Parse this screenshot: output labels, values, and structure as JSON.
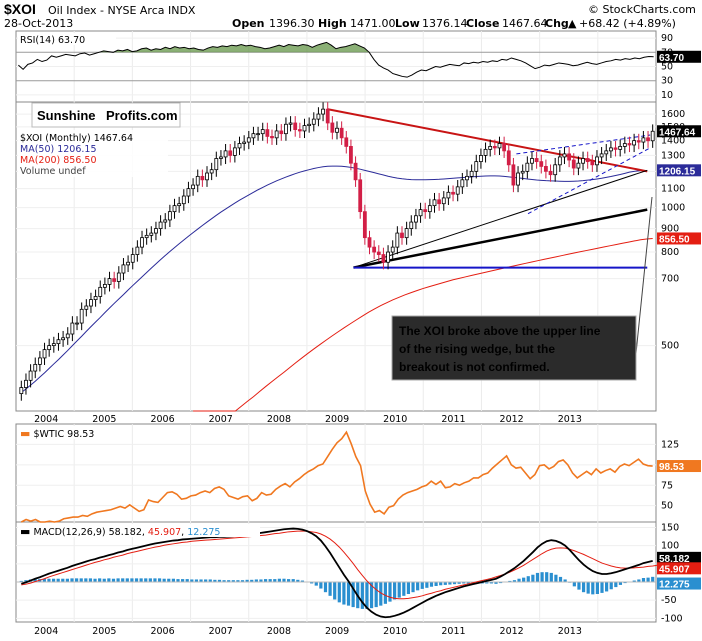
{
  "header": {
    "symbol": "$XOI",
    "name": "Oil Index - NYSE Arca INDX",
    "date": "28-Oct-2013",
    "watermark": "© StockCharts.com",
    "open_label": "Open",
    "open": "1396.30",
    "high_label": "High",
    "high": "1471.00",
    "low_label": "Low",
    "low": "1376.14",
    "close_label": "Close",
    "close": "1467.64",
    "chg_label": "Chg",
    "chg": "+68.42 (+4.89%)",
    "up_arrow": "▲"
  },
  "logo": {
    "part1": "Sunshine",
    "part2": "Profits.com"
  },
  "annotation": {
    "line1": "The XOI broke above the upper line",
    "line2": "of the rising wedge, but the",
    "line3": "breakout is not confirmed."
  },
  "colors": {
    "up": "#000000",
    "down": "#d21f46",
    "ma50": "#2b2b99",
    "ma200": "#e41e12",
    "wtic": "#f07820",
    "macd": "#000000",
    "signal": "#e41e12",
    "hist": "#2a8fd0",
    "rsi": "#000000",
    "rsi_fill": "#5a8f3c",
    "trend_red": "#c81414",
    "support_blue": "#1515c8",
    "badge_price": "#000000",
    "badge_ma50": "#2b2b99",
    "badge_ma200": "#e41e12",
    "badge_wtic": "#f07820"
  },
  "chart_data": [
    {
      "panel": "rsi",
      "type": "line",
      "title": "RSI(14) 63.70",
      "label": "RSI(14)",
      "value": "63.70",
      "ylim": [
        0,
        100
      ],
      "yticks": [
        10,
        30,
        50,
        70,
        90
      ],
      "levels": [
        30,
        70
      ],
      "badge": "63.70",
      "values": [
        52,
        46,
        53,
        55,
        60,
        57,
        59,
        65,
        63,
        65,
        67,
        66,
        65,
        68,
        69,
        66,
        68,
        70,
        72,
        71,
        70,
        73,
        72,
        74,
        71,
        72,
        75,
        76,
        73,
        75,
        74,
        77,
        75,
        78,
        76,
        77,
        75,
        76,
        74,
        73,
        76,
        78,
        77,
        79,
        78,
        80,
        79,
        81,
        79,
        80,
        78,
        77,
        75,
        76,
        78,
        80,
        78,
        81,
        80,
        79,
        81,
        80,
        77,
        80,
        82,
        84,
        80,
        75,
        77,
        78,
        80,
        82,
        79,
        76,
        70,
        60,
        52,
        48,
        45,
        40,
        38,
        36,
        35,
        38,
        42,
        45,
        44,
        47,
        50,
        49,
        51,
        53,
        52,
        51,
        55,
        54,
        56,
        55,
        57,
        56,
        58,
        57,
        60,
        59,
        62,
        60,
        58,
        55,
        51,
        47,
        49,
        52,
        51,
        53,
        55,
        54,
        53,
        51,
        52,
        54,
        56,
        54,
        53,
        55,
        57,
        58,
        60,
        59,
        61,
        60,
        62,
        61,
        63,
        64,
        63.7
      ]
    },
    {
      "panel": "price",
      "type": "candlestick",
      "title": "$XOI (Monthly) 1467.64",
      "scale": "log",
      "ylim": [
        360,
        1700
      ],
      "yticks": [
        500,
        700,
        800,
        900,
        1000,
        1100,
        1200,
        1300,
        1400,
        1500,
        1600
      ],
      "ytick_labels": [
        "500",
        "700",
        "800",
        "900",
        "1000",
        "1100",
        "1200",
        "1300",
        "1400",
        "1500",
        "1600"
      ],
      "x_labels": [
        "2004",
        "2005",
        "2006",
        "2007",
        "2008",
        "2009",
        "2010",
        "2011",
        "2012",
        "2013"
      ],
      "x_label_start": 2003.5,
      "x_start": 2003.0,
      "x_end": 2014.0,
      "legend": [
        {
          "text": "$XOI (Monthly) 1467.64",
          "color_key": "up"
        },
        {
          "text": "MA(50) 1206.15",
          "color_key": "ma50"
        },
        {
          "text": "MA(200) 856.50",
          "color_key": "ma200"
        },
        {
          "text": "Volume undef",
          "color_key": "up"
        }
      ],
      "closes": [
        405,
        420,
        440,
        455,
        470,
        490,
        500,
        505,
        515,
        520,
        530,
        560,
        560,
        600,
        610,
        630,
        640,
        670,
        680,
        700,
        690,
        720,
        750,
        760,
        790,
        820,
        860,
        870,
        880,
        900,
        930,
        940,
        980,
        1010,
        1020,
        1060,
        1100,
        1120,
        1170,
        1150,
        1190,
        1210,
        1280,
        1290,
        1330,
        1300,
        1350,
        1380,
        1390,
        1420,
        1450,
        1450,
        1480,
        1430,
        1420,
        1470,
        1450,
        1520,
        1530,
        1480,
        1470,
        1510,
        1520,
        1560,
        1600,
        1640,
        1530,
        1460,
        1490,
        1420,
        1360,
        1250,
        1150,
        980,
        860,
        820,
        800,
        790,
        760,
        800,
        820,
        880,
        860,
        900,
        930,
        960,
        990,
        980,
        1010,
        1040,
        1020,
        1050,
        1080,
        1070,
        1110,
        1150,
        1170,
        1200,
        1260,
        1300,
        1340,
        1360,
        1350,
        1380,
        1330,
        1240,
        1120,
        1190,
        1200,
        1250,
        1280,
        1260,
        1230,
        1200,
        1180,
        1240,
        1290,
        1310,
        1270,
        1220,
        1250,
        1280,
        1260,
        1240,
        1290,
        1310,
        1330,
        1350,
        1340,
        1360,
        1380,
        1370,
        1400,
        1390,
        1420,
        1399.2,
        1467.64
      ],
      "ma50": [
        395,
        402,
        410,
        418,
        427,
        436,
        446,
        456,
        466,
        477,
        488,
        500,
        512,
        524,
        537,
        550,
        563,
        576,
        590,
        604,
        618,
        632,
        646,
        661,
        676,
        691,
        706,
        722,
        738,
        754,
        770,
        786,
        802,
        818,
        834,
        850,
        866,
        882,
        898,
        914,
        930,
        946,
        962,
        978,
        993,
        1008,
        1023,
        1038,
        1052,
        1066,
        1080,
        1094,
        1107,
        1120,
        1132,
        1144,
        1155,
        1166,
        1176,
        1186,
        1195,
        1203,
        1210,
        1217,
        1223,
        1228,
        1231,
        1232,
        1232,
        1231,
        1228,
        1224,
        1219,
        1213,
        1206,
        1199,
        1192,
        1185,
        1178,
        1171,
        1165,
        1160,
        1156,
        1153,
        1151,
        1150,
        1150,
        1150,
        1151,
        1152,
        1153,
        1155,
        1157,
        1159,
        1161,
        1163,
        1165,
        1167,
        1169,
        1171,
        1172,
        1173,
        1173,
        1172,
        1170,
        1167,
        1164,
        1161,
        1158,
        1155,
        1152,
        1149,
        1147,
        1145,
        1144,
        1143,
        1142,
        1141,
        1141,
        1142,
        1143,
        1145,
        1148,
        1151,
        1155,
        1159,
        1164,
        1169,
        1175,
        1181,
        1188,
        1195,
        1200,
        1203,
        1206.15
      ],
      "ma200_start": 2006.0,
      "ma200": [
        300,
        308,
        316,
        324,
        333,
        342,
        351,
        360,
        369,
        378,
        387,
        397,
        407,
        417,
        427,
        437,
        448,
        459,
        470,
        481,
        492,
        503,
        514,
        525,
        536,
        547,
        558,
        569,
        580,
        591,
        601,
        611,
        620,
        629,
        637,
        645,
        652,
        659,
        666,
        672,
        678,
        684,
        690,
        696,
        701,
        706,
        711,
        716,
        721,
        726,
        731,
        736,
        741,
        746,
        751,
        756,
        761,
        766,
        771,
        776,
        781,
        786,
        791,
        796,
        801,
        806,
        811,
        816,
        821,
        826,
        831,
        836,
        841,
        846,
        851,
        854,
        856.5
      ],
      "badges": [
        {
          "text": "1467.64",
          "value": 1467.64,
          "color_key": "badge_price"
        },
        {
          "text": "1206.15",
          "value": 1206.15,
          "color_key": "badge_ma50"
        },
        {
          "text": "856.50",
          "value": 856.5,
          "color_key": "badge_ma200"
        }
      ],
      "trendlines": [
        {
          "name": "red-downtrend",
          "points": [
            [
              2008.35,
              1640
            ],
            [
              2013.85,
              1200
            ]
          ],
          "color_key": "trend_red",
          "width": 2
        },
        {
          "name": "black-thin-support",
          "points": [
            [
              2008.8,
              740
            ],
            [
              2013.85,
              1206
            ]
          ],
          "color_key": "macd",
          "width": 1
        },
        {
          "name": "black-thick-support",
          "points": [
            [
              2008.8,
              740
            ],
            [
              2013.85,
              990
            ]
          ],
          "color_key": "macd",
          "width": 2.5
        },
        {
          "name": "blue-horizontal-support",
          "points": [
            [
              2008.8,
              740
            ],
            [
              2013.85,
              740
            ]
          ],
          "color_key": "support_blue",
          "width": 2
        },
        {
          "name": "wedge-upper",
          "points": [
            [
              2011.6,
              1310
            ],
            [
              2013.9,
              1440
            ]
          ],
          "color_key": "support_blue",
          "width": 1,
          "dashed": true
        },
        {
          "name": "wedge-lower",
          "points": [
            [
              2011.8,
              970
            ],
            [
              2013.9,
              1350
            ]
          ],
          "color_key": "support_blue",
          "width": 1,
          "dashed": true
        }
      ]
    },
    {
      "panel": "wtic",
      "type": "line",
      "title": "$WTIC 98.53",
      "label": "$WTIC",
      "value": "98.53",
      "ylim": [
        30,
        150
      ],
      "yticks": [
        50,
        75,
        100,
        125
      ],
      "badge": "98.53",
      "values": [
        30,
        33,
        31,
        33,
        30,
        28,
        31,
        29,
        31,
        34,
        35,
        36,
        36,
        38,
        37,
        40,
        42,
        43,
        44,
        45,
        47,
        49,
        47,
        51,
        47,
        43,
        45,
        57,
        55,
        54,
        60,
        66,
        67,
        64,
        58,
        59,
        62,
        63,
        66,
        68,
        66,
        71,
        73,
        70,
        62,
        60,
        58,
        61,
        62,
        56,
        59,
        66,
        63,
        64,
        70,
        74,
        77,
        73,
        79,
        83,
        88,
        92,
        95,
        99,
        101,
        110,
        119,
        127,
        132,
        140,
        126,
        110,
        99,
        68,
        52,
        42,
        44,
        40,
        48,
        50,
        58,
        63,
        66,
        68,
        70,
        73,
        75,
        80,
        76,
        80,
        72,
        73,
        77,
        75,
        78,
        80,
        84,
        84,
        88,
        90,
        96,
        101,
        106,
        111,
        100,
        96,
        97,
        90,
        83,
        88,
        99,
        100,
        95,
        98,
        104,
        106,
        100,
        90,
        84,
        88,
        92,
        88,
        95,
        90,
        93,
        95,
        91,
        98,
        101,
        99,
        103,
        107,
        101,
        99,
        98.53
      ]
    },
    {
      "panel": "macd",
      "type": "line+histogram",
      "title": "MACD(12,26,9) 58.182, 45.907, 12.275",
      "label": "MACD(12,26,9)",
      "macd_value": "58.182",
      "signal_value": "45.907",
      "hist_value": "12.275",
      "ylim": [
        -110,
        165
      ],
      "yticks": [
        -100,
        -50,
        0,
        50,
        100,
        150
      ],
      "badges": [
        {
          "text": "58.182",
          "value": 58.182
        },
        {
          "text": "45.907",
          "value": 45.907
        },
        {
          "text": "12.275",
          "value": 12.275
        }
      ],
      "x_labels": [
        "2004",
        "2005",
        "2006",
        "2007",
        "2008",
        "2009",
        "2010",
        "2011",
        "2012",
        "2013"
      ],
      "macd": [
        -5,
        -1,
        4,
        9,
        13,
        18,
        23,
        27,
        31,
        35,
        39,
        44,
        48,
        52,
        56,
        60,
        63,
        67,
        70,
        74,
        77,
        81,
        84,
        88,
        91,
        94,
        97,
        100,
        103,
        106,
        108,
        110,
        112,
        114,
        115,
        117,
        118,
        119,
        120,
        121,
        122,
        123,
        123,
        124,
        124,
        125,
        126,
        127,
        128,
        130,
        131,
        133,
        135,
        137,
        139,
        141,
        143,
        145,
        146,
        147,
        146,
        144,
        140,
        134,
        126,
        114,
        98,
        80,
        60,
        40,
        20,
        2,
        -18,
        -38,
        -56,
        -71,
        -82,
        -90,
        -95,
        -97,
        -96,
        -93,
        -89,
        -84,
        -78,
        -71,
        -64,
        -57,
        -50,
        -44,
        -38,
        -33,
        -28,
        -24,
        -20,
        -16,
        -12,
        -9,
        -6,
        -3,
        0,
        3,
        6,
        9,
        15,
        22,
        30,
        38,
        48,
        58,
        70,
        82,
        95,
        105,
        112,
        115,
        113,
        108,
        100,
        88,
        74,
        60,
        48,
        38,
        30,
        25,
        22,
        22,
        24,
        27,
        31,
        35,
        39,
        43,
        47,
        52,
        55,
        58.182
      ],
      "signal": [
        -8,
        -6,
        -3,
        1,
        5,
        9,
        14,
        18,
        22,
        26,
        30,
        34,
        38,
        42,
        46,
        50,
        54,
        57,
        61,
        64,
        68,
        71,
        74,
        78,
        81,
        84,
        87,
        90,
        93,
        96,
        98,
        101,
        103,
        105,
        107,
        109,
        110,
        112,
        113,
        114,
        115,
        116,
        117,
        118,
        119,
        120,
        121,
        122,
        123,
        124,
        125,
        126,
        128,
        129,
        131,
        133,
        134,
        136,
        138,
        139,
        140,
        140,
        140,
        138,
        136,
        132,
        126,
        118,
        108,
        96,
        82,
        67,
        51,
        34,
        18,
        3,
        -10,
        -21,
        -30,
        -37,
        -42,
        -45,
        -46,
        -46,
        -45,
        -43,
        -41,
        -38,
        -34,
        -31,
        -27,
        -24,
        -20,
        -17,
        -14,
        -11,
        -8,
        -5,
        -2,
        1,
        4,
        7,
        10,
        14,
        18,
        22,
        27,
        33,
        39,
        46,
        54,
        62,
        70,
        78,
        85,
        90,
        93,
        94,
        93,
        90,
        86,
        81,
        76,
        70,
        64,
        58,
        52,
        48,
        44,
        41,
        39,
        38,
        38,
        39,
        40,
        41,
        43,
        44,
        45.907
      ]
    }
  ]
}
